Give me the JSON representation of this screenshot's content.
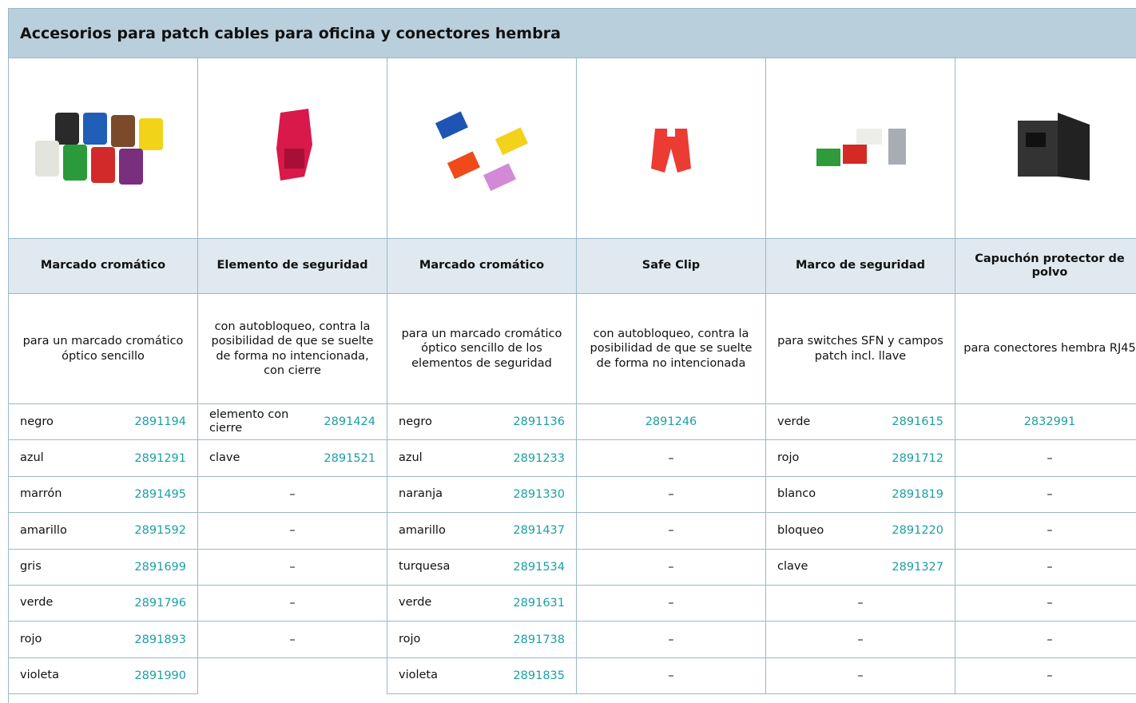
{
  "title": "Accesorios para patch cables para oficina y conectores hembra",
  "columns": [
    {
      "title": "Marcado cromático",
      "description": "para un marcado cromático óptico sencillo",
      "rows": [
        {
          "name": "negro",
          "code": "2891194"
        },
        {
          "name": "azul",
          "code": "2891291"
        },
        {
          "name": "marrón",
          "code": "2891495"
        },
        {
          "name": "amarillo",
          "code": "2891592"
        },
        {
          "name": "gris",
          "code": "2891699"
        },
        {
          "name": "verde",
          "code": "2891796"
        },
        {
          "name": "rojo",
          "code": "2891893"
        },
        {
          "name": "violeta",
          "code": "2891990"
        }
      ]
    },
    {
      "title": "Elemento de seguridad",
      "description": "con autobloqueo, contra la posibilidad de que se suelte de forma no intencionada, con cierre",
      "rows": [
        {
          "name": "elemento con cierre",
          "code": "2891424"
        },
        {
          "name": "clave",
          "code": "2891521"
        },
        "–",
        "–",
        "–",
        "–",
        "–"
      ]
    },
    {
      "title": "Marcado cromático",
      "description": "para un marcado cromático óptico sencillo de los elementos de seguridad",
      "rows": [
        {
          "name": "negro",
          "code": "2891136"
        },
        {
          "name": "azul",
          "code": "2891233"
        },
        {
          "name": "naranja",
          "code": "2891330"
        },
        {
          "name": "amarillo",
          "code": "2891437"
        },
        {
          "name": "turquesa",
          "code": "2891534"
        },
        {
          "name": "verde",
          "code": "2891631"
        },
        {
          "name": "rojo",
          "code": "2891738"
        },
        {
          "name": "violeta",
          "code": "2891835"
        }
      ]
    },
    {
      "title": "Safe Clip",
      "description": "con autobloqueo, contra la posibilidad de que se suelte de forma no intencionada",
      "rows": [
        {
          "code": "2891246"
        },
        "–",
        "–",
        "–",
        "–",
        "–",
        "–",
        "–"
      ]
    },
    {
      "title": "Marco de seguridad",
      "description": "para switches SFN y campos patch incl. llave",
      "rows": [
        {
          "name": "verde",
          "code": "2891615"
        },
        {
          "name": "rojo",
          "code": "2891712"
        },
        {
          "name": "blanco",
          "code": "2891819"
        },
        {
          "name": "bloqueo",
          "code": "2891220"
        },
        {
          "name": "clave",
          "code": "2891327"
        },
        "–",
        "–",
        "–"
      ]
    },
    {
      "title": "Capuchón protector de polvo",
      "description": "para conectores hembra RJ45",
      "rows": [
        {
          "code": "2832991"
        },
        "–",
        "–",
        "–",
        "–",
        "–",
        "–",
        "–"
      ]
    }
  ]
}
